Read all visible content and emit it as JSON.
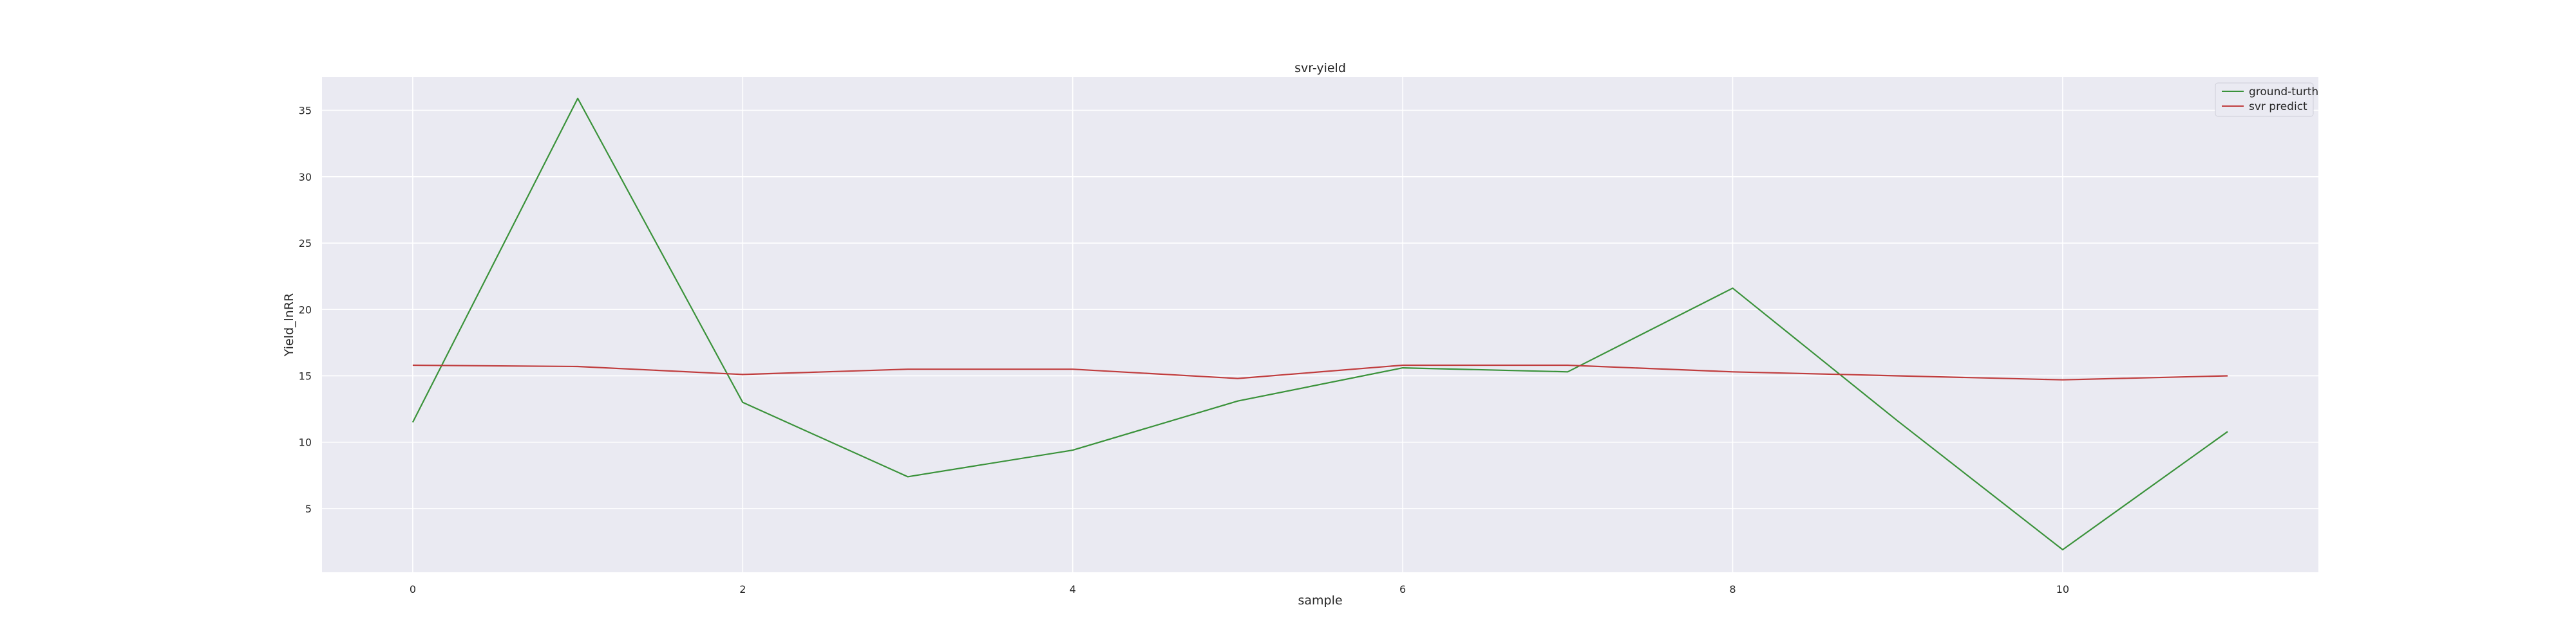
{
  "chart_data": {
    "type": "line",
    "title": "svr-yield",
    "xlabel": "sample",
    "ylabel": "Yield_lnRR",
    "x": [
      0,
      1,
      2,
      3,
      4,
      5,
      6,
      7,
      8,
      9,
      10,
      11
    ],
    "xlim": [
      -0.55,
      11.55
    ],
    "ylim": [
      0.2,
      37.5
    ],
    "xticks": [
      0,
      2,
      4,
      6,
      8,
      10
    ],
    "yticks": [
      5,
      10,
      15,
      20,
      25,
      30,
      35
    ],
    "grid": true,
    "background": "#eaeaf2",
    "legend_position": "upper right",
    "series": [
      {
        "name": "ground-turth",
        "color": "#3a923a",
        "values": [
          11.5,
          35.9,
          13.0,
          7.4,
          9.4,
          13.1,
          15.6,
          15.3,
          21.6,
          11.6,
          1.9,
          10.8
        ]
      },
      {
        "name": "svr predict",
        "color": "#c03d3e",
        "values": [
          15.8,
          15.7,
          15.1,
          15.5,
          15.5,
          14.8,
          15.8,
          15.8,
          15.3,
          15.0,
          14.7,
          15.0
        ]
      }
    ]
  }
}
